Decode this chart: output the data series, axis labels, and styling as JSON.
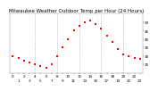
{
  "title": "Milwaukee Weather Outdoor Temp per Hour (24 Hours)",
  "hours": [
    0,
    1,
    2,
    3,
    4,
    5,
    6,
    7,
    8,
    9,
    10,
    11,
    12,
    13,
    14,
    15,
    16,
    17,
    18,
    19,
    20,
    21,
    22,
    23
  ],
  "temperatures": [
    30,
    29,
    27,
    26,
    25,
    24,
    23,
    25,
    30,
    35,
    40,
    45,
    48,
    50,
    51,
    49,
    46,
    42,
    38,
    34,
    31,
    30,
    29,
    28
  ],
  "dot_color": "#ff0000",
  "background_color": "#ffffff",
  "plot_bg_color": "#ffffff",
  "grid_color": "#999999",
  "ylim": [
    20,
    55
  ],
  "ytick_values": [
    25,
    30,
    35,
    40,
    45,
    50
  ],
  "vgrid_hours": [
    4,
    8,
    12,
    16,
    20
  ],
  "title_fontsize": 4.0,
  "tick_fontsize": 3.0,
  "dot_size": 1.5
}
